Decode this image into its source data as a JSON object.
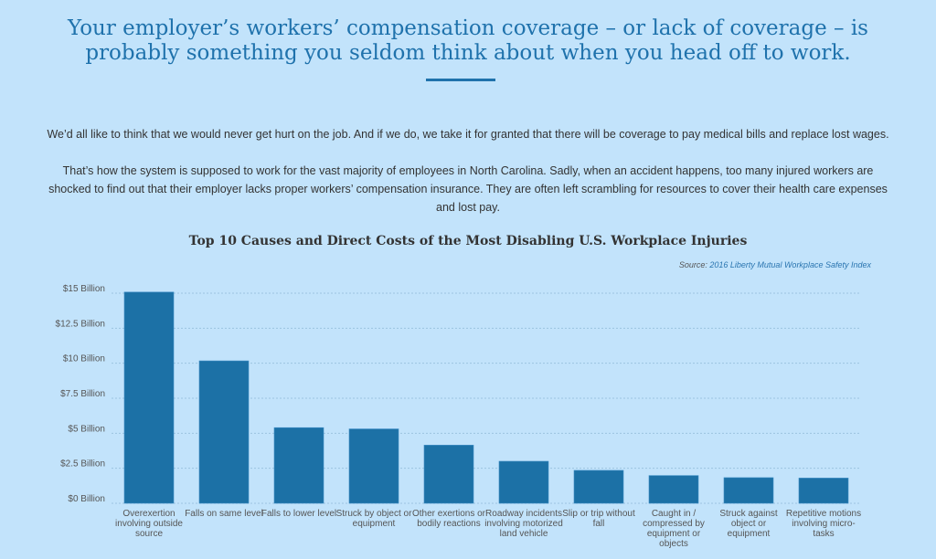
{
  "headline": [
    "Your employer’s workers’ compensation coverage – or lack of coverage – is",
    "probably something you seldom think about when you head off to work."
  ],
  "paragraphs": [
    "We’d all like to think that we would never get hurt on the job. And if we do, we take it for granted that there will be coverage to pay medical bills and replace lost wages.",
    "That’s how the system is supposed to work for the vast majority of employees in North Carolina. Sadly, when an accident happens, too many injured workers are shocked to find out that their employer lacks proper workers’ compensation insurance. They are often left scrambling for resources to cover their health care expenses and lost pay."
  ],
  "colors": {
    "bar": "#1c71a6",
    "accent": "#1f72ac",
    "background": "#c2e3fb"
  },
  "chart_data": {
    "type": "bar",
    "title": "Top 10 Causes and Direct Costs of the Most Disabling U.S. Workplace Injuries",
    "source_label": "Source:",
    "source_link": "2016 Liberty Mutual Workplace Safety Index",
    "ylim": [
      0,
      15
    ],
    "yticks": [
      0,
      2.5,
      5,
      7.5,
      10,
      12.5,
      15
    ],
    "ytick_labels": [
      "$0 Billion",
      "$2.5 Billion",
      "$5 Billion",
      "$7.5 Billion",
      "$10 Billion",
      "$12.5 Billion",
      "$15 Billion"
    ],
    "categories": [
      [
        "Overexertion",
        "involving outside",
        "source"
      ],
      [
        "Falls on same level"
      ],
      [
        "Falls to lower level"
      ],
      [
        "Struck by object or",
        "equipment"
      ],
      [
        "Other exertions or",
        "bodily reactions"
      ],
      [
        "Roadway incidents",
        "involving motorized",
        "land vehicle"
      ],
      [
        "Slip or trip without",
        "fall"
      ],
      [
        "Caught in /",
        "compressed by",
        "equipment or",
        "objects"
      ],
      [
        "Struck against",
        "object or",
        "equipment"
      ],
      [
        "Repetitive motions",
        "involving micro-",
        "tasks"
      ]
    ],
    "values": [
      15.08,
      10.17,
      5.4,
      5.31,
      4.15,
      3.0,
      2.35,
      1.98,
      1.83,
      1.8
    ],
    "units": "USD billions",
    "grid": true
  }
}
